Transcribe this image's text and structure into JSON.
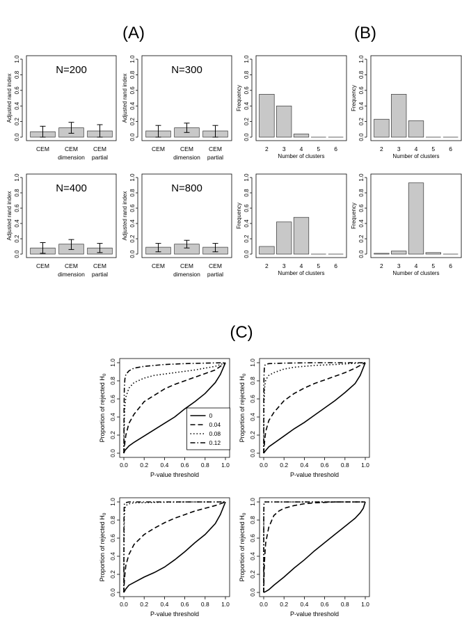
{
  "panel_labels": [
    "(A)",
    "(B)",
    "(C)"
  ],
  "chart_data": [
    {
      "type": "bar",
      "panel": "A",
      "title": "N=200",
      "ylabel": "Adjusted rand index",
      "xlabel": "",
      "categories": [
        "CEM",
        "CEM dimension",
        "CEM partial"
      ],
      "values": [
        0.07,
        0.12,
        0.08
      ],
      "error_low": [
        0.0,
        0.05,
        0.0
      ],
      "error_high": [
        0.14,
        0.19,
        0.16
      ],
      "ylim": [
        0,
        1.0
      ],
      "yticks": [
        "0.0",
        "0.2",
        "0.4",
        "0.6",
        "0.8",
        "1.0"
      ]
    },
    {
      "type": "bar",
      "panel": "A",
      "title": "N=300",
      "ylabel": "Adjusted rand index",
      "xlabel": "",
      "categories": [
        "CEM",
        "CEM dimension",
        "CEM partial"
      ],
      "values": [
        0.08,
        0.12,
        0.08
      ],
      "error_low": [
        0.0,
        0.06,
        0.0
      ],
      "error_high": [
        0.15,
        0.18,
        0.15
      ],
      "ylim": [
        0,
        1.0
      ],
      "yticks": [
        "0.0",
        "0.2",
        "0.4",
        "0.6",
        "0.8",
        "1.0"
      ]
    },
    {
      "type": "bar",
      "panel": "B",
      "title": "",
      "ylabel": "Frequency",
      "xlabel": "Number of clusters",
      "categories": [
        "2",
        "3",
        "4",
        "5",
        "6"
      ],
      "values": [
        0.55,
        0.4,
        0.04,
        0.0,
        0.0
      ],
      "ylim": [
        0,
        1.0
      ],
      "yticks": [
        "0.0",
        "0.2",
        "0.4",
        "0.6",
        "0.8",
        "1.0"
      ]
    },
    {
      "type": "bar",
      "panel": "B",
      "title": "",
      "ylabel": "Frequency",
      "xlabel": "Number of clusters",
      "categories": [
        "2",
        "3",
        "4",
        "5",
        "6"
      ],
      "values": [
        0.23,
        0.55,
        0.21,
        0.0,
        0.0
      ],
      "ylim": [
        0,
        1.0
      ],
      "yticks": [
        "0.0",
        "0.2",
        "0.4",
        "0.6",
        "0.8",
        "1.0"
      ]
    },
    {
      "type": "bar",
      "panel": "A",
      "title": "N=400",
      "ylabel": "Adjusted rand index",
      "xlabel": "",
      "categories": [
        "CEM",
        "CEM dimension",
        "CEM partial"
      ],
      "values": [
        0.08,
        0.13,
        0.08
      ],
      "error_low": [
        0.01,
        0.06,
        0.02
      ],
      "error_high": [
        0.15,
        0.19,
        0.14
      ],
      "ylim": [
        0,
        1.0
      ],
      "yticks": [
        "0.0",
        "0.2",
        "0.4",
        "0.6",
        "0.8",
        "1.0"
      ]
    },
    {
      "type": "bar",
      "panel": "A",
      "title": "N=800",
      "ylabel": "Adjusted rand index",
      "xlabel": "",
      "categories": [
        "CEM",
        "CEM dimension",
        "CEM partial"
      ],
      "values": [
        0.09,
        0.13,
        0.09
      ],
      "error_low": [
        0.03,
        0.08,
        0.03
      ],
      "error_high": [
        0.14,
        0.18,
        0.14
      ],
      "ylim": [
        0,
        1.0
      ],
      "yticks": [
        "0.0",
        "0.2",
        "0.4",
        "0.6",
        "0.8",
        "1.0"
      ]
    },
    {
      "type": "bar",
      "panel": "B",
      "title": "",
      "ylabel": "Frequency",
      "xlabel": "Number of clusters",
      "categories": [
        "2",
        "3",
        "4",
        "5",
        "6"
      ],
      "values": [
        0.1,
        0.42,
        0.48,
        0.0,
        0.0
      ],
      "ylim": [
        0,
        1.0
      ],
      "yticks": [
        "0.0",
        "0.2",
        "0.4",
        "0.6",
        "0.8",
        "1.0"
      ]
    },
    {
      "type": "bar",
      "panel": "B",
      "title": "",
      "ylabel": "Frequency",
      "xlabel": "Number of clusters",
      "categories": [
        "2",
        "3",
        "4",
        "5",
        "6"
      ],
      "values": [
        0.01,
        0.04,
        0.93,
        0.02,
        0.0
      ],
      "ylim": [
        0,
        1.0
      ],
      "yticks": [
        "0.0",
        "0.2",
        "0.4",
        "0.6",
        "0.8",
        "1.0"
      ]
    },
    {
      "type": "line",
      "panel": "C",
      "ylabel": "Proportion of rejected H",
      "ylabel_sub": "0",
      "xlabel": "P-value threshold",
      "xlim": [
        0,
        1
      ],
      "ylim": [
        0,
        1
      ],
      "xticks": [
        "0.0",
        "0.2",
        "0.4",
        "0.6",
        "0.8",
        "1.0"
      ],
      "yticks": [
        "0.0",
        "0.2",
        "0.4",
        "0.6",
        "0.8",
        "1.0"
      ],
      "legend": [
        "0",
        "0.04",
        "0.08",
        "0.12"
      ],
      "series": [
        {
          "name": "0",
          "style": "solid",
          "x": [
            0,
            0.01,
            0.05,
            0.1,
            0.2,
            0.3,
            0.4,
            0.5,
            0.6,
            0.7,
            0.8,
            0.9,
            0.95,
            1.0
          ],
          "y": [
            0,
            0.03,
            0.08,
            0.12,
            0.19,
            0.26,
            0.33,
            0.4,
            0.49,
            0.57,
            0.66,
            0.78,
            0.87,
            1.0
          ]
        },
        {
          "name": "0.04",
          "style": "dashed",
          "x": [
            0,
            0.01,
            0.02,
            0.05,
            0.1,
            0.2,
            0.3,
            0.4,
            0.5,
            0.6,
            0.7,
            0.8,
            0.9,
            1.0
          ],
          "y": [
            0,
            0.12,
            0.2,
            0.33,
            0.43,
            0.57,
            0.64,
            0.71,
            0.76,
            0.8,
            0.84,
            0.88,
            0.92,
            1.0
          ]
        },
        {
          "name": "0.08",
          "style": "dotted",
          "x": [
            0,
            0.005,
            0.01,
            0.02,
            0.05,
            0.1,
            0.2,
            0.3,
            0.5,
            0.7,
            0.9,
            1.0
          ],
          "y": [
            0,
            0.38,
            0.52,
            0.62,
            0.72,
            0.78,
            0.83,
            0.86,
            0.89,
            0.92,
            0.96,
            1.0
          ]
        },
        {
          "name": "0.12",
          "style": "dashdot",
          "x": [
            0,
            0.002,
            0.005,
            0.01,
            0.02,
            0.05,
            0.1,
            0.2,
            0.4,
            0.6,
            0.8,
            1.0
          ],
          "y": [
            0,
            0.5,
            0.72,
            0.82,
            0.87,
            0.91,
            0.94,
            0.96,
            0.98,
            0.99,
            0.995,
            1.0
          ]
        }
      ]
    },
    {
      "type": "line",
      "panel": "C",
      "ylabel": "Proportion of rejected H",
      "ylabel_sub": "0",
      "xlabel": "P-value threshold",
      "xlim": [
        0,
        1
      ],
      "ylim": [
        0,
        1
      ],
      "xticks": [
        "0.0",
        "0.2",
        "0.4",
        "0.6",
        "0.8",
        "1.0"
      ],
      "yticks": [
        "0.0",
        "0.2",
        "0.4",
        "0.6",
        "0.8",
        "1.0"
      ],
      "series": [
        {
          "name": "0",
          "style": "solid",
          "x": [
            0,
            0.02,
            0.05,
            0.1,
            0.2,
            0.3,
            0.4,
            0.5,
            0.6,
            0.7,
            0.8,
            0.9,
            0.95,
            1.0
          ],
          "y": [
            0,
            0.03,
            0.07,
            0.11,
            0.19,
            0.27,
            0.34,
            0.42,
            0.5,
            0.58,
            0.67,
            0.77,
            0.86,
            1.0
          ]
        },
        {
          "name": "0.04",
          "style": "dashed",
          "x": [
            0,
            0.01,
            0.02,
            0.05,
            0.1,
            0.2,
            0.3,
            0.4,
            0.5,
            0.6,
            0.7,
            0.8,
            0.9,
            1.0
          ],
          "y": [
            0,
            0.15,
            0.24,
            0.36,
            0.45,
            0.58,
            0.66,
            0.72,
            0.77,
            0.81,
            0.85,
            0.89,
            0.94,
            1.0
          ]
        },
        {
          "name": "0.08",
          "style": "dotted",
          "x": [
            0,
            0.003,
            0.01,
            0.02,
            0.05,
            0.1,
            0.2,
            0.3,
            0.5,
            0.7,
            1.0
          ],
          "y": [
            0,
            0.55,
            0.74,
            0.81,
            0.86,
            0.89,
            0.93,
            0.95,
            0.97,
            0.98,
            1.0
          ]
        },
        {
          "name": "0.12",
          "style": "dashdot",
          "x": [
            0,
            0.001,
            0.003,
            0.006,
            0.01,
            0.02,
            0.05,
            0.2,
            0.5,
            1.0
          ],
          "y": [
            0,
            0.6,
            0.85,
            0.94,
            0.97,
            0.98,
            0.99,
            0.995,
            1.0,
            1.0
          ]
        }
      ]
    },
    {
      "type": "line",
      "panel": "C",
      "ylabel": "Proportion of rejected H",
      "ylabel_sub": "0",
      "xlabel": "P-value threshold",
      "xlim": [
        0,
        1
      ],
      "ylim": [
        0,
        1
      ],
      "xticks": [
        "0.0",
        "0.2",
        "0.4",
        "0.6",
        "0.8",
        "1.0"
      ],
      "yticks": [
        "0.0",
        "0.2",
        "0.4",
        "0.6",
        "0.8",
        "1.0"
      ],
      "series": [
        {
          "name": "0",
          "style": "solid",
          "x": [
            0,
            0.02,
            0.05,
            0.1,
            0.2,
            0.3,
            0.4,
            0.5,
            0.6,
            0.7,
            0.8,
            0.9,
            0.95,
            1.0
          ],
          "y": [
            0,
            0.04,
            0.08,
            0.11,
            0.17,
            0.22,
            0.28,
            0.36,
            0.45,
            0.55,
            0.64,
            0.76,
            0.86,
            1.0
          ]
        },
        {
          "name": "0.04",
          "style": "dashed",
          "x": [
            0,
            0.005,
            0.01,
            0.02,
            0.05,
            0.1,
            0.2,
            0.3,
            0.4,
            0.5,
            0.6,
            0.7,
            0.8,
            0.9,
            1.0
          ],
          "y": [
            0,
            0.12,
            0.2,
            0.3,
            0.42,
            0.53,
            0.64,
            0.71,
            0.77,
            0.82,
            0.86,
            0.9,
            0.93,
            0.96,
            1.0
          ]
        },
        {
          "name": "0.08",
          "style": "dotted",
          "x": [
            0,
            0.002,
            0.005,
            0.01,
            0.02,
            0.05,
            0.1,
            0.3,
            0.6,
            1.0
          ],
          "y": [
            0,
            0.6,
            0.85,
            0.93,
            0.96,
            0.98,
            0.99,
            0.995,
            1.0,
            1.0
          ]
        },
        {
          "name": "0.12",
          "style": "dashdot",
          "x": [
            0,
            0.001,
            0.002,
            0.004,
            0.01,
            0.05,
            0.3,
            1.0
          ],
          "y": [
            0,
            0.7,
            0.9,
            0.97,
            0.99,
            1.0,
            1.0,
            1.0
          ]
        }
      ]
    },
    {
      "type": "line",
      "panel": "C",
      "ylabel": "Proportion of rejected H",
      "ylabel_sub": "0",
      "xlabel": "P-value threshold",
      "xlim": [
        0,
        1
      ],
      "ylim": [
        0,
        1
      ],
      "xticks": [
        "0.0",
        "0.2",
        "0.4",
        "0.6",
        "0.8",
        "1.0"
      ],
      "yticks": [
        "0.0",
        "0.2",
        "0.4",
        "0.6",
        "0.8",
        "1.0"
      ],
      "series": [
        {
          "name": "0",
          "style": "solid",
          "x": [
            0,
            0.02,
            0.05,
            0.1,
            0.2,
            0.3,
            0.4,
            0.5,
            0.6,
            0.7,
            0.8,
            0.9,
            0.95,
            0.98,
            1.0
          ],
          "y": [
            0,
            0.01,
            0.03,
            0.08,
            0.17,
            0.27,
            0.36,
            0.46,
            0.55,
            0.64,
            0.73,
            0.82,
            0.88,
            0.93,
            1.0
          ]
        },
        {
          "name": "0.04",
          "style": "dashed",
          "x": [
            0,
            0.005,
            0.01,
            0.02,
            0.05,
            0.1,
            0.15,
            0.2,
            0.3,
            0.4,
            0.5,
            0.7,
            1.0
          ],
          "y": [
            0,
            0.25,
            0.4,
            0.55,
            0.72,
            0.85,
            0.9,
            0.93,
            0.96,
            0.98,
            0.99,
            1.0,
            1.0
          ]
        },
        {
          "name": "0.08",
          "style": "dotted",
          "x": [
            0,
            0.001,
            0.002,
            0.004,
            0.01,
            0.05,
            1.0
          ],
          "y": [
            0,
            0.8,
            0.95,
            0.99,
            1.0,
            1.0,
            1.0
          ]
        },
        {
          "name": "0.12",
          "style": "dashdot",
          "x": [
            0,
            0.001,
            0.002,
            0.004,
            0.01,
            0.05,
            1.0
          ],
          "y": [
            0,
            0.85,
            0.97,
            1.0,
            1.0,
            1.0,
            1.0
          ]
        }
      ]
    }
  ]
}
